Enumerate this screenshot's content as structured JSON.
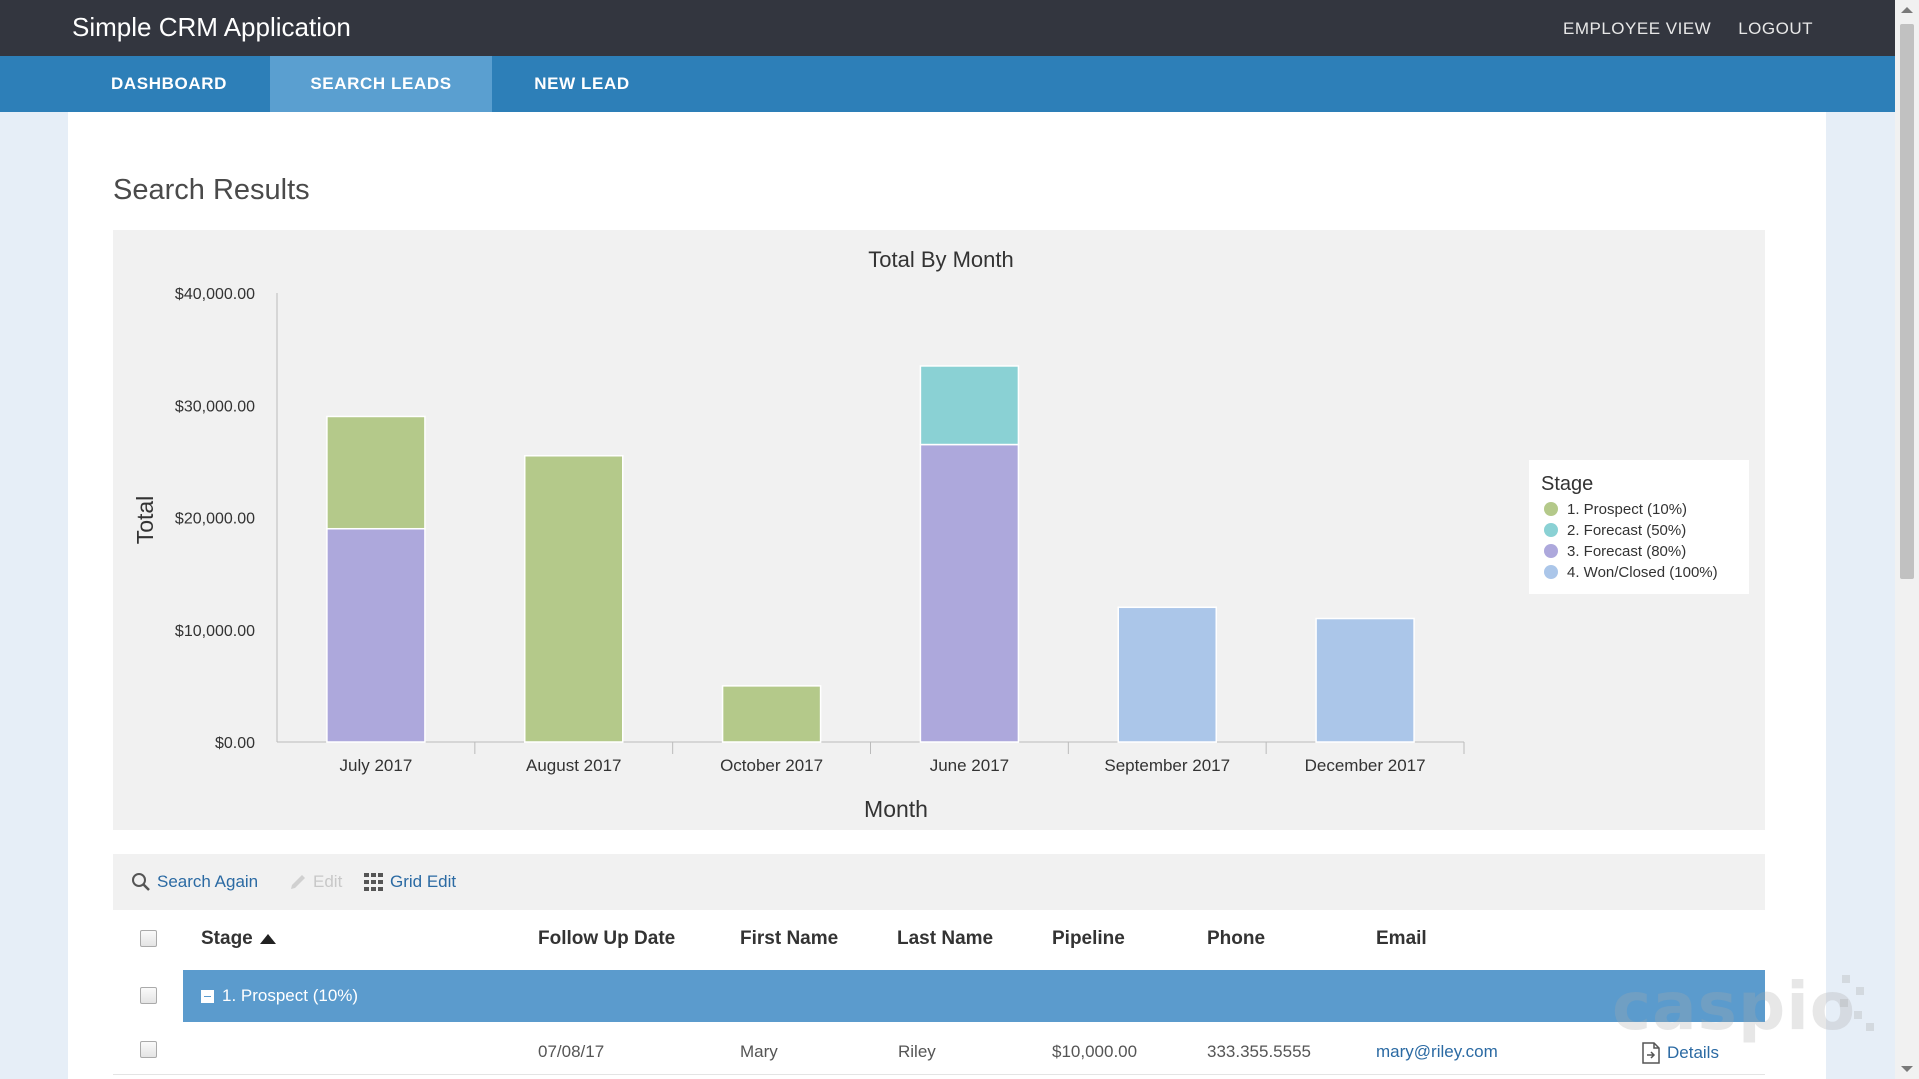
{
  "app": {
    "title": "Simple CRM Application"
  },
  "top_links": {
    "employee_view": "EMPLOYEE VIEW",
    "logout": "LOGOUT"
  },
  "nav": {
    "tabs": [
      {
        "label": "DASHBOARD",
        "active": false
      },
      {
        "label": "SEARCH LEADS",
        "active": true
      },
      {
        "label": "NEW LEAD",
        "active": false
      }
    ]
  },
  "page": {
    "title": "Search Results"
  },
  "chart_data": {
    "type": "bar",
    "stacked": true,
    "title": "Total By Month",
    "xlabel": "Month",
    "ylabel": "Total",
    "ylim": [
      0,
      40000
    ],
    "yticks": [
      "$0.00",
      "$10,000.00",
      "$20,000.00",
      "$30,000.00",
      "$40,000.00"
    ],
    "categories": [
      "July 2017",
      "August 2017",
      "October 2017",
      "June 2017",
      "September 2017",
      "December 2017"
    ],
    "legend_title": "Stage",
    "legend_position": "right",
    "series": [
      {
        "name": "1. Prospect (10%)",
        "color": "#b4c98a",
        "values": [
          10000,
          25500,
          5000,
          0,
          0,
          0
        ]
      },
      {
        "name": "2. Forecast (50%)",
        "color": "#8ad1d4",
        "values": [
          0,
          0,
          0,
          7000,
          0,
          0
        ]
      },
      {
        "name": "3. Forecast (80%)",
        "color": "#ada8dc",
        "values": [
          19000,
          0,
          0,
          26500,
          0,
          0
        ]
      },
      {
        "name": "4. Won/Closed (100%)",
        "color": "#abc6e9",
        "values": [
          0,
          0,
          0,
          0,
          12000,
          11000
        ]
      }
    ]
  },
  "toolbar": {
    "search_again": "Search Again",
    "edit": "Edit",
    "grid_edit": "Grid Edit"
  },
  "table": {
    "columns": [
      "Stage",
      "Follow Up Date",
      "First Name",
      "Last Name",
      "Pipeline",
      "Phone",
      "Email"
    ],
    "group_label": "1. Prospect (10%)",
    "rows": [
      {
        "follow_up": "07/08/17",
        "first": "Mary",
        "last": "Riley",
        "pipeline": "$10,000.00",
        "phone": "333.355.5555",
        "email": "mary@riley.com",
        "details": "Details"
      }
    ]
  },
  "colors": {
    "topbar": "#33363f",
    "navbar": "#2d7fb8",
    "active_tab": "#5a9fd0",
    "link": "#2b6aa3",
    "group_row": "#5b9bcd"
  },
  "watermark": "caspio"
}
